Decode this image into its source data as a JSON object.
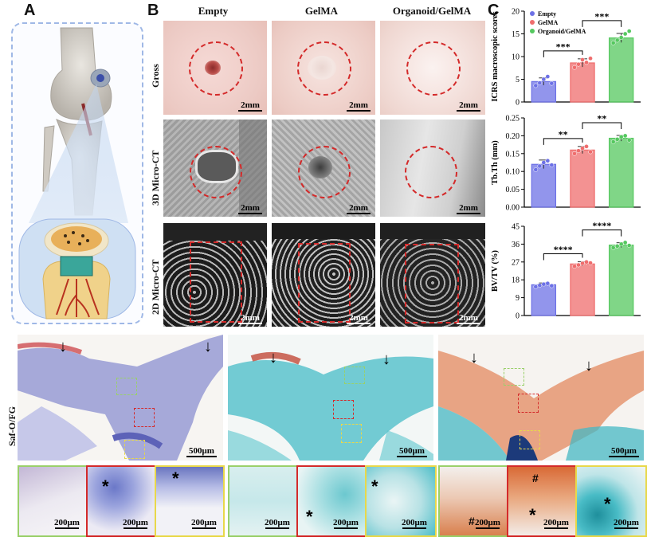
{
  "panels": {
    "a": "A",
    "b": "B",
    "c": "C"
  },
  "columns": [
    "Empty",
    "GelMA",
    "Organoid/GelMA"
  ],
  "rows": [
    "Gross",
    "3D Micro-CT",
    "2D Micro-CT"
  ],
  "bottom_row_label": "Saf-O/FG",
  "scalebars": {
    "mm": "2mm",
    "large": "500μm",
    "small": "200μm"
  },
  "markers": {
    "star": "*",
    "hash": "#"
  },
  "colors": {
    "empty": "#6d71e6",
    "gelma": "#ef6d6d",
    "organoid": "#55c85f",
    "red_dash": "#d42a2a",
    "green_box": "#9ad06a",
    "yellow_box": "#e8d84a"
  },
  "chart_data": [
    {
      "type": "bar",
      "categories": [
        "Empty",
        "GelMA",
        "Organoid/GelMA"
      ],
      "values": [
        4.5,
        8.6,
        14.1
      ],
      "points": [
        [
          3.6,
          4.2,
          5.0,
          5.6,
          4.1
        ],
        [
          7.6,
          8.3,
          9.3,
          8.7,
          9.6
        ],
        [
          13.0,
          13.6,
          14.2,
          15.0,
          15.6
        ]
      ],
      "errors": [
        0.8,
        0.9,
        1.0
      ],
      "ylabel": "ICRS macroscopic scores",
      "ylim": [
        0,
        20
      ],
      "yticks": [
        0,
        5,
        10,
        15,
        20
      ],
      "legend": [
        "Empty",
        "GelMA",
        "Organoid/GelMA"
      ],
      "legend_position": "top-left",
      "significance": [
        {
          "from": 0,
          "to": 1,
          "label": "***"
        },
        {
          "from": 1,
          "to": 2,
          "label": "***"
        }
      ]
    },
    {
      "type": "bar",
      "categories": [
        "Empty",
        "GelMA",
        "Organoid/GelMA"
      ],
      "values": [
        0.12,
        0.16,
        0.193
      ],
      "points": [
        [
          0.105,
          0.115,
          0.125,
          0.13,
          0.118
        ],
        [
          0.15,
          0.158,
          0.165,
          0.17,
          0.155
        ],
        [
          0.183,
          0.19,
          0.197,
          0.2,
          0.188
        ]
      ],
      "errors": [
        0.012,
        0.01,
        0.008
      ],
      "ylabel": "Tb.Th (mm)",
      "ylim": [
        0,
        0.25
      ],
      "yticks": [
        "0.00",
        "0.05",
        "0.10",
        "0.15",
        "0.20",
        "0.25"
      ],
      "significance": [
        {
          "from": 0,
          "to": 1,
          "label": "**"
        },
        {
          "from": 1,
          "to": 2,
          "label": "**"
        }
      ]
    },
    {
      "type": "bar",
      "categories": [
        "Empty",
        "GelMA",
        "Organoid/GelMA"
      ],
      "values": [
        15.5,
        26.0,
        35.5
      ],
      "points": [
        [
          14.5,
          15.2,
          15.8,
          16.2,
          15.0
        ],
        [
          24.8,
          25.5,
          26.3,
          27.0,
          26.5
        ],
        [
          34.2,
          35.0,
          36.0,
          36.8,
          35.3
        ]
      ],
      "errors": [
        0.9,
        1.1,
        1.2
      ],
      "ylabel": "BV/TV (%)",
      "ylim": [
        0,
        45
      ],
      "yticks": [
        0,
        9,
        18,
        27,
        36,
        45
      ],
      "significance": [
        {
          "from": 0,
          "to": 1,
          "label": "****"
        },
        {
          "from": 1,
          "to": 2,
          "label": "****"
        }
      ]
    }
  ]
}
